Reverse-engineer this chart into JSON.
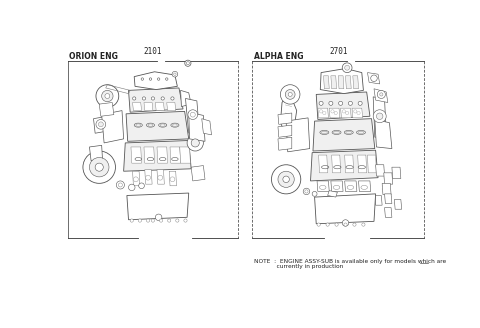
{
  "background_color": "#ffffff",
  "fig_width": 4.8,
  "fig_height": 3.28,
  "dpi": 100,
  "left_label": "ORION ENG",
  "left_part_number": "2101",
  "right_label": "ALPHA ENG",
  "right_part_number": "2701",
  "note_line1": "NOTE  :  ENGINE ASSY-SUB is available only for models which are",
  "note_line2": "            currently in production",
  "line_color": "#555555",
  "text_color": "#222222",
  "label_fontsize": 5.5,
  "partnumber_fontsize": 5.5,
  "note_fontsize": 4.2
}
